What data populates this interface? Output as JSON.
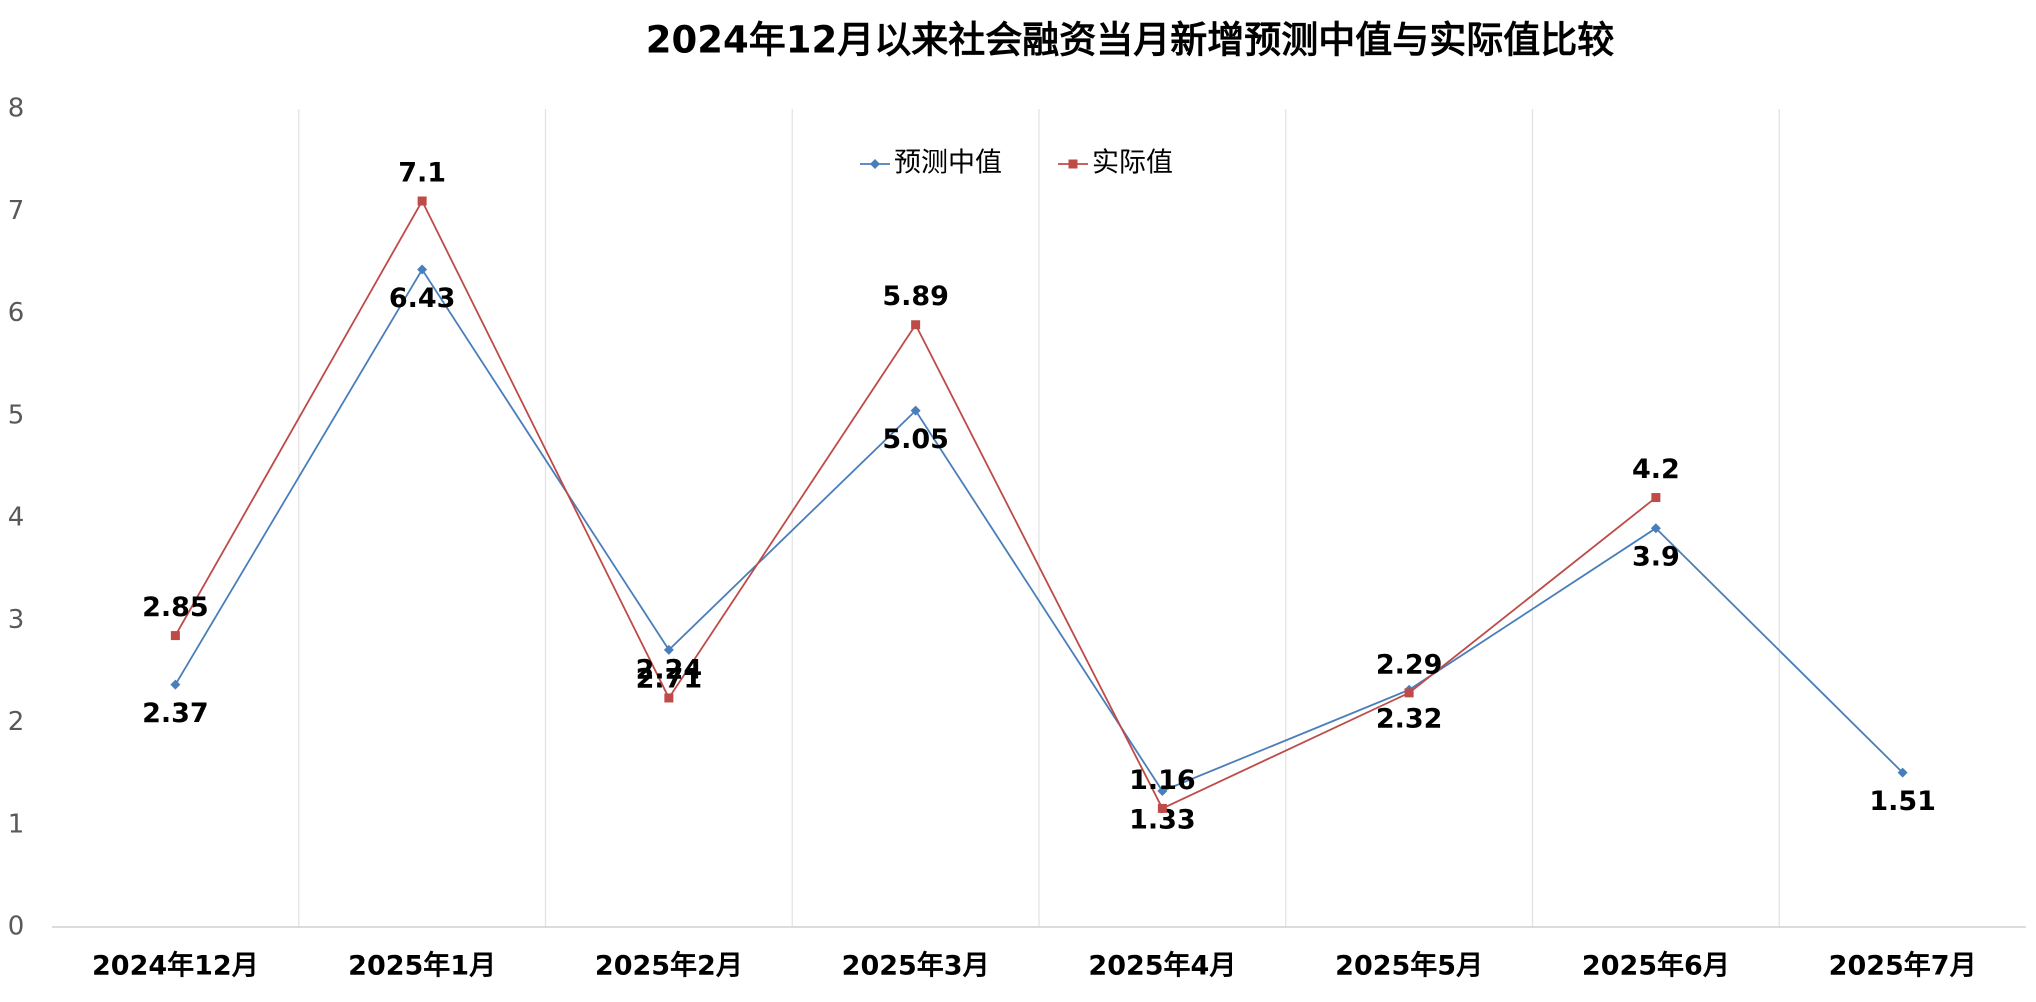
{
  "chart_data": {
    "type": "line",
    "title": "2024年12月以来社会融资当月新增预测中值与实际值比较",
    "categories": [
      "2024年12月",
      "2025年1月",
      "2025年2月",
      "2025年3月",
      "2025年4月",
      "2025年5月",
      "2025年6月",
      "2025年7月"
    ],
    "series": [
      {
        "name": "预测中值",
        "color": "#4a7ebb",
        "marker": "diamond",
        "values": [
          2.37,
          6.43,
          2.71,
          5.05,
          1.33,
          2.32,
          3.9,
          1.51
        ]
      },
      {
        "name": "实际值",
        "color": "#be4b48",
        "marker": "square",
        "values": [
          2.85,
          7.1,
          2.24,
          5.89,
          1.16,
          2.29,
          4.2,
          null
        ]
      }
    ],
    "ylim": [
      0,
      8
    ],
    "yticks": [
      0,
      1,
      2,
      3,
      4,
      5,
      6,
      7,
      8
    ],
    "grid": true,
    "legend": "top"
  }
}
